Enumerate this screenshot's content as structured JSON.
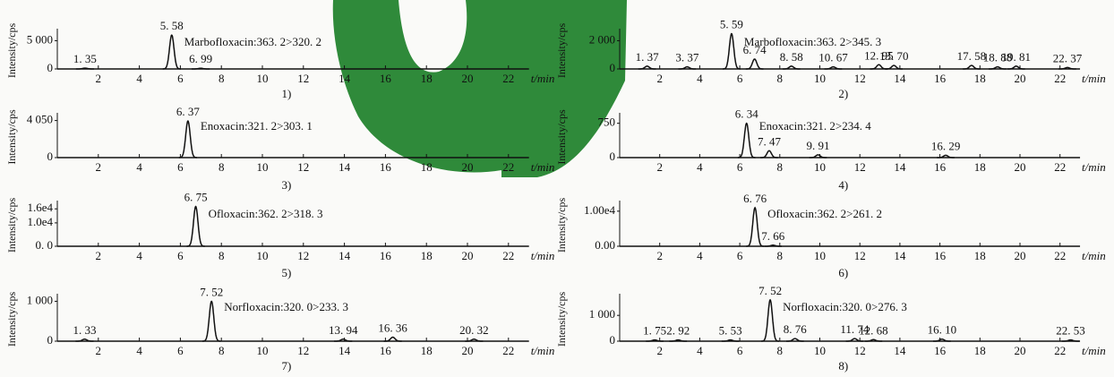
{
  "chart_data": [
    {
      "type": "line",
      "title": "Marbofloxacin:363. 2>320. 2",
      "caption": "1)",
      "ylabel": "Intensity/cps",
      "xlabel": "t/min",
      "color": "#111111",
      "xlim": [
        0,
        23
      ],
      "xticks": [
        2,
        4,
        6,
        8,
        10,
        12,
        14,
        16,
        18,
        20,
        22
      ],
      "ylim": [
        0,
        6500
      ],
      "yticks": [
        0,
        {
          "value": 5000,
          "label": "5 000"
        }
      ],
      "peaks": [
        {
          "x": 1.35,
          "label": "1. 35",
          "value": 150
        },
        {
          "x": 5.58,
          "label": "5. 58",
          "value": 6000
        },
        {
          "x": 6.99,
          "label": "6. 99",
          "value": 120
        }
      ]
    },
    {
      "type": "line",
      "title": "Marbofloxacin:363. 2>345. 3",
      "caption": "2)",
      "ylabel": "Intensity/cps",
      "xlabel": "t/min",
      "color": "#111111",
      "xlim": [
        0,
        23
      ],
      "xticks": [
        2,
        4,
        6,
        8,
        10,
        12,
        14,
        16,
        18,
        20,
        22
      ],
      "ylim": [
        0,
        2600
      ],
      "yticks": [
        0,
        {
          "value": 2000,
          "label": "2 000"
        }
      ],
      "peaks": [
        {
          "x": 1.37,
          "label": "1. 37",
          "value": 200
        },
        {
          "x": 3.37,
          "label": "3. 37",
          "value": 150
        },
        {
          "x": 5.59,
          "label": "5. 59",
          "value": 2500
        },
        {
          "x": 6.74,
          "label": "6. 74",
          "value": 700
        },
        {
          "x": 8.58,
          "label": "8. 58",
          "value": 200
        },
        {
          "x": 10.67,
          "label": "10. 67",
          "value": 150
        },
        {
          "x": 12.95,
          "label": "12. 95",
          "value": 300
        },
        {
          "x": 13.7,
          "label": "13. 70",
          "value": 250
        },
        {
          "x": 17.58,
          "label": "17. 58",
          "value": 250
        },
        {
          "x": 18.88,
          "label": "18. 88",
          "value": 150
        },
        {
          "x": 19.81,
          "label": "19. 81",
          "value": 200
        },
        {
          "x": 22.37,
          "label": "22. 37",
          "value": 100
        }
      ]
    },
    {
      "type": "line",
      "title": "Enoxacin:321. 2>303. 1",
      "caption": "3)",
      "ylabel": "Intensity/cps",
      "xlabel": "t/min",
      "color": "#111111",
      "xlim": [
        0,
        23
      ],
      "xticks": [
        2,
        4,
        6,
        8,
        10,
        12,
        14,
        16,
        18,
        20,
        22
      ],
      "ylim": [
        0,
        4500
      ],
      "yticks": [
        0,
        {
          "value": 4050,
          "label": "4 050"
        }
      ],
      "peaks": [
        {
          "x": 6.37,
          "label": "6. 37",
          "value": 4000
        }
      ]
    },
    {
      "type": "line",
      "title": "Enoxacin:321. 2>234. 4",
      "caption": "4)",
      "ylabel": "Intensity/cps",
      "xlabel": "t/min",
      "color": "#111111",
      "xlim": [
        0,
        23
      ],
      "xticks": [
        2,
        4,
        6,
        8,
        10,
        12,
        14,
        16,
        18,
        20,
        22
      ],
      "ylim": [
        0,
        900
      ],
      "yticks": [
        0,
        750
      ],
      "peaks": [
        {
          "x": 6.34,
          "label": "6. 34",
          "value": 750
        },
        {
          "x": 7.47,
          "label": "7. 47",
          "value": 150
        },
        {
          "x": 9.91,
          "label": "9. 91",
          "value": 60
        },
        {
          "x": 16.29,
          "label": "16. 29",
          "value": 50
        }
      ]
    },
    {
      "type": "line",
      "title": "Ofloxacin:362. 2>318. 3",
      "caption": "5)",
      "ylabel": "Intensity/cps",
      "xlabel": "t/min",
      "color": "#111111",
      "xlim": [
        0,
        23
      ],
      "xticks": [
        2,
        4,
        6,
        8,
        10,
        12,
        14,
        16,
        18,
        20,
        22
      ],
      "ylim": [
        0,
        18000
      ],
      "yticks": [
        {
          "value": 0,
          "label": "0. 0"
        },
        {
          "value": 10000,
          "label": "1.0e4"
        },
        {
          "value": 16000,
          "label": "1.6e4"
        }
      ],
      "peaks": [
        {
          "x": 6.75,
          "label": "6. 75",
          "value": 17000
        }
      ]
    },
    {
      "type": "line",
      "title": "Ofloxacin:362. 2>261. 2",
      "caption": "6)",
      "ylabel": "Intensity/cps",
      "xlabel": "t/min",
      "color": "#111111",
      "xlim": [
        0,
        23
      ],
      "xticks": [
        2,
        4,
        6,
        8,
        10,
        12,
        14,
        16,
        18,
        20,
        22
      ],
      "ylim": [
        0,
        12000
      ],
      "yticks": [
        {
          "value": 0,
          "label": "0.00"
        },
        {
          "value": 10000,
          "label": "1.00e4"
        }
      ],
      "peaks": [
        {
          "x": 6.76,
          "label": "6. 76",
          "value": 11000
        },
        {
          "x": 7.66,
          "label": "7. 66",
          "value": 300
        }
      ]
    },
    {
      "type": "line",
      "title": "Norfloxacin:320. 0>233. 3",
      "caption": "7)",
      "ylabel": "Intensity/cps",
      "xlabel": "t/min",
      "color": "#111111",
      "xlim": [
        0,
        23
      ],
      "xticks": [
        2,
        4,
        6,
        8,
        10,
        12,
        14,
        16,
        18,
        20,
        22
      ],
      "ylim": [
        0,
        1100
      ],
      "yticks": [
        0,
        {
          "value": 1000,
          "label": "1 000"
        }
      ],
      "peaks": [
        {
          "x": 1.33,
          "label": "1. 33",
          "value": 50
        },
        {
          "x": 7.52,
          "label": "7. 52",
          "value": 1000
        },
        {
          "x": 13.94,
          "label": "13. 94",
          "value": 50
        },
        {
          "x": 16.36,
          "label": "16. 36",
          "value": 100
        },
        {
          "x": 20.32,
          "label": "20. 32",
          "value": 50
        }
      ]
    },
    {
      "type": "line",
      "title": "Norfloxacin:320. 0>276. 3",
      "caption": "8)",
      "ylabel": "Intensity/cps",
      "xlabel": "t/min",
      "color": "#111111",
      "xlim": [
        0,
        23
      ],
      "xticks": [
        2,
        4,
        6,
        8,
        10,
        12,
        14,
        16,
        18,
        20,
        22
      ],
      "ylim": [
        0,
        1700
      ],
      "yticks": [
        0,
        {
          "value": 1000,
          "label": "1 000"
        }
      ],
      "peaks": [
        {
          "x": 1.75,
          "label": "1. 75",
          "value": 50
        },
        {
          "x": 2.92,
          "label": "2. 92",
          "value": 50
        },
        {
          "x": 5.53,
          "label": "5. 53",
          "value": 50
        },
        {
          "x": 7.52,
          "label": "7. 52",
          "value": 1600
        },
        {
          "x": 8.76,
          "label": "8. 76",
          "value": 100
        },
        {
          "x": 11.74,
          "label": "11. 74",
          "value": 100
        },
        {
          "x": 12.68,
          "label": "12. 68",
          "value": 60
        },
        {
          "x": 16.1,
          "label": "16. 10",
          "value": 80
        },
        {
          "x": 22.53,
          "label": "22. 53",
          "value": 50
        }
      ]
    }
  ]
}
